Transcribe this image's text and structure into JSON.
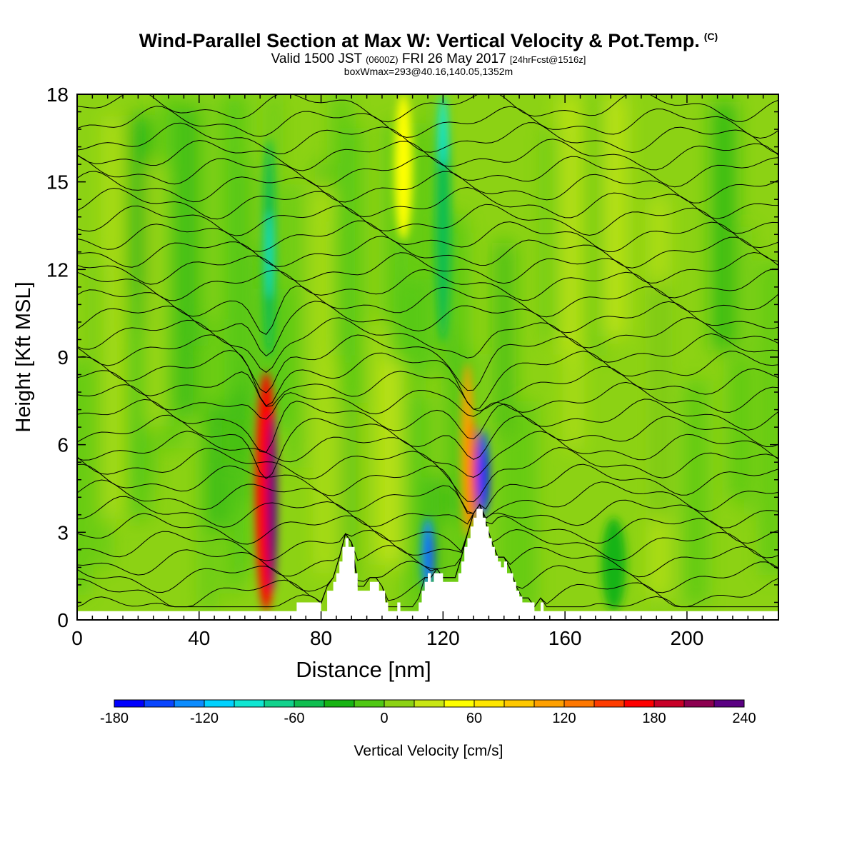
{
  "header": {
    "title_main": "Wind-Parallel Section at Max W: Vertical Velocity & Pot.Temp.",
    "title_copyright": "(C)",
    "subtitle_a": "Valid 1500 JST",
    "subtitle_b": "(0600Z)",
    "subtitle_c": "FRI 26 May 2017",
    "subtitle_d": "[24hrFcst@1516z]",
    "subtitle_line3": "boxWmax=293@40.16,140.05,1352m"
  },
  "chart_data": {
    "type": "heatmap",
    "xlabel": "Distance [nm]",
    "ylabel": "Height [Kft MSL]",
    "xlim": [
      0,
      230
    ],
    "ylim": [
      0,
      18
    ],
    "xticks": [
      0,
      40,
      80,
      120,
      160,
      200
    ],
    "yticks": [
      0,
      3,
      6,
      9,
      12,
      15,
      18
    ],
    "background_level": 10,
    "colorbar": {
      "label": "Vertical Velocity [cm/s]",
      "tick_labels": [
        -180,
        -120,
        -60,
        0,
        60,
        120,
        180,
        240
      ],
      "levels": [
        -180,
        -160,
        -140,
        -120,
        -100,
        -80,
        -60,
        -40,
        -20,
        0,
        20,
        40,
        60,
        80,
        100,
        120,
        140,
        160,
        180,
        200,
        220,
        240
      ],
      "colors": [
        "#0000ff",
        "#0a46ff",
        "#0b8cff",
        "#00d2ff",
        "#10e6d2",
        "#12d28c",
        "#10be50",
        "#18b414",
        "#50c814",
        "#8cd214",
        "#c8e614",
        "#ffff00",
        "#ffe600",
        "#ffc800",
        "#ffa000",
        "#ff7800",
        "#ff3c00",
        "#ff0000",
        "#c80028",
        "#8c0050",
        "#5a0082"
      ]
    },
    "terrain_profile": {
      "distance": [
        0,
        72,
        72,
        80,
        80,
        82,
        82,
        84,
        84,
        85,
        85,
        86,
        86,
        87,
        87,
        88,
        88,
        89,
        89,
        91,
        91,
        92,
        92,
        96,
        96,
        99,
        99,
        101,
        101,
        102,
        102,
        105,
        105,
        106,
        106,
        112,
        112,
        113,
        113,
        114,
        114,
        115,
        115,
        116,
        116,
        117,
        117,
        120,
        120,
        125,
        125,
        126,
        126,
        127,
        127,
        128,
        128,
        129,
        129,
        130,
        130,
        131,
        131,
        133,
        133,
        134,
        134,
        135,
        135,
        136,
        136,
        137,
        137,
        138,
        138,
        139,
        139,
        140,
        140,
        141,
        141,
        143,
        143,
        144,
        144,
        145,
        145,
        146,
        146,
        150,
        150,
        152,
        152,
        153,
        153,
        230
      ],
      "height": [
        0.3,
        0.3,
        0.6,
        0.6,
        0.3,
        0.3,
        1.0,
        1.0,
        1.3,
        1.3,
        1.6,
        1.6,
        2.0,
        2.0,
        2.5,
        2.5,
        2.8,
        2.8,
        2.5,
        2.5,
        1.6,
        1.6,
        1.0,
        1.0,
        1.3,
        1.3,
        1.0,
        1.0,
        0.6,
        0.6,
        0.3,
        0.3,
        0.6,
        0.6,
        0.3,
        0.3,
        0.6,
        0.6,
        1.0,
        1.0,
        1.3,
        1.3,
        1.6,
        1.6,
        1.3,
        1.3,
        1.6,
        1.6,
        1.3,
        1.3,
        1.6,
        1.6,
        2.0,
        2.0,
        2.5,
        2.5,
        2.8,
        2.8,
        3.2,
        3.2,
        3.5,
        3.5,
        3.8,
        3.8,
        3.5,
        3.5,
        3.2,
        3.2,
        2.8,
        2.8,
        2.5,
        2.5,
        2.2,
        2.2,
        2.0,
        2.0,
        1.8,
        1.8,
        2.0,
        2.0,
        1.6,
        1.6,
        1.3,
        1.3,
        1.0,
        1.0,
        0.8,
        0.8,
        0.6,
        0.6,
        0.3,
        0.3,
        0.6,
        0.6,
        0.3,
        0.3
      ]
    },
    "features": [
      {
        "x": 62,
        "y0": 0.3,
        "y1": 8.5,
        "w": 7,
        "value": 170
      },
      {
        "x": 64,
        "y0": 1.0,
        "y1": 7.0,
        "w": 3,
        "value": 230
      },
      {
        "x": 128,
        "y0": 2.8,
        "y1": 8.8,
        "w": 4,
        "value": 110
      },
      {
        "x": 130,
        "y0": 3.2,
        "y1": 6.8,
        "w": 2,
        "value": 160
      },
      {
        "x": 133,
        "y0": 3.5,
        "y1": 6.5,
        "w": 4,
        "value": -150
      },
      {
        "x": 134,
        "y0": 3.8,
        "y1": 5.8,
        "w": 2,
        "value": -180
      },
      {
        "x": 115,
        "y0": 1.0,
        "y1": 3.5,
        "w": 4,
        "value": -130
      },
      {
        "x": 116,
        "y0": 1.3,
        "y1": 3.0,
        "w": 2,
        "value": -160
      },
      {
        "x": 63,
        "y0": 9.0,
        "y1": 16.5,
        "w": 4,
        "value": -60
      },
      {
        "x": 63,
        "y0": 11.0,
        "y1": 14.0,
        "w": 2,
        "value": -100
      },
      {
        "x": 120,
        "y0": 9.5,
        "y1": 18,
        "w": 5,
        "value": -60
      },
      {
        "x": 120,
        "y0": 15.5,
        "y1": 18,
        "w": 3,
        "value": -100
      },
      {
        "x": 107,
        "y0": 13.0,
        "y1": 18,
        "w": 6,
        "value": 40
      },
      {
        "x": 176,
        "y0": 0.3,
        "y1": 3.5,
        "w": 8,
        "value": -40
      }
    ],
    "theta_contours": {
      "count": 32,
      "y_left_start": 0.35,
      "y_left_end": 17.6
    }
  }
}
